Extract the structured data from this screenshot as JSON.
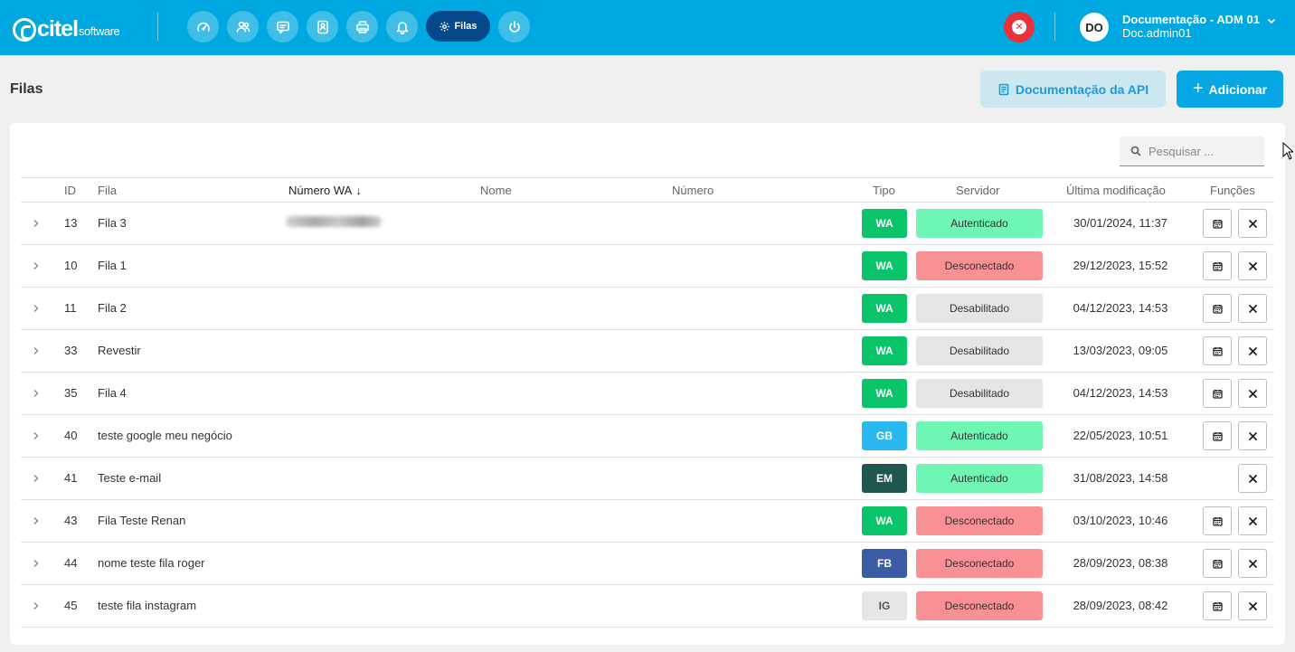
{
  "brand": {
    "logo_word": "citel",
    "logo_sub": "software"
  },
  "nav": {
    "active_label": "Filas"
  },
  "user": {
    "initials": "DO",
    "name": "Documentação - ADM 01",
    "login": "Doc.admin01"
  },
  "page": {
    "title": "Filas"
  },
  "actions": {
    "api_docs_label": "Documentação da API",
    "add_label": "Adicionar"
  },
  "search": {
    "placeholder": "Pesquisar ..."
  },
  "columns": {
    "id": "ID",
    "fila": "Fila",
    "numero_wa": "Número WA",
    "nome": "Nome",
    "numero": "Número",
    "tipo": "Tipo",
    "servidor": "Servidor",
    "ultima_modificacao": "Última modificação",
    "funcoes": "Funções"
  },
  "colors": {
    "topbar": "#00a8e1",
    "WA": "#0ac46a",
    "GB": "#29b9f0",
    "EM": "#1f5650",
    "FB": "#3b5ba4",
    "IG": "#e6e6e6",
    "Autenticado": "#6ff5b4",
    "Desconectado": "#f99095",
    "Desabilitado": "#e5e5e5"
  },
  "rows": [
    {
      "id": "13",
      "fila": "Fila 3",
      "tipo": "WA",
      "servidor": "Autenticado",
      "modificacao": "30/01/2024, 11:37"
    },
    {
      "id": "10",
      "fila": "Fila 1",
      "tipo": "WA",
      "servidor": "Desconectado",
      "modificacao": "29/12/2023, 15:52"
    },
    {
      "id": "11",
      "fila": "Fila 2",
      "tipo": "WA",
      "servidor": "Desabilitado",
      "modificacao": "04/12/2023, 14:53"
    },
    {
      "id": "33",
      "fila": "Revestir",
      "tipo": "WA",
      "servidor": "Desabilitado",
      "modificacao": "13/03/2023, 09:05"
    },
    {
      "id": "35",
      "fila": "Fila 4",
      "tipo": "WA",
      "servidor": "Desabilitado",
      "modificacao": "04/12/2023, 14:53"
    },
    {
      "id": "40",
      "fila": "teste google meu negócio",
      "tipo": "GB",
      "servidor": "Autenticado",
      "modificacao": "22/05/2023, 10:51"
    },
    {
      "id": "41",
      "fila": "Teste e-mail",
      "tipo": "EM",
      "servidor": "Autenticado",
      "modificacao": "31/08/2023, 14:58"
    },
    {
      "id": "43",
      "fila": "Fila Teste Renan",
      "tipo": "WA",
      "servidor": "Desconectado",
      "modificacao": "03/10/2023, 10:46"
    },
    {
      "id": "44",
      "fila": "nome teste fila roger",
      "tipo": "FB",
      "servidor": "Desconectado",
      "modificacao": "28/09/2023, 08:38"
    },
    {
      "id": "45",
      "fila": "teste fila instagram",
      "tipo": "IG",
      "servidor": "Desconectado",
      "modificacao": "28/09/2023, 08:42"
    }
  ]
}
